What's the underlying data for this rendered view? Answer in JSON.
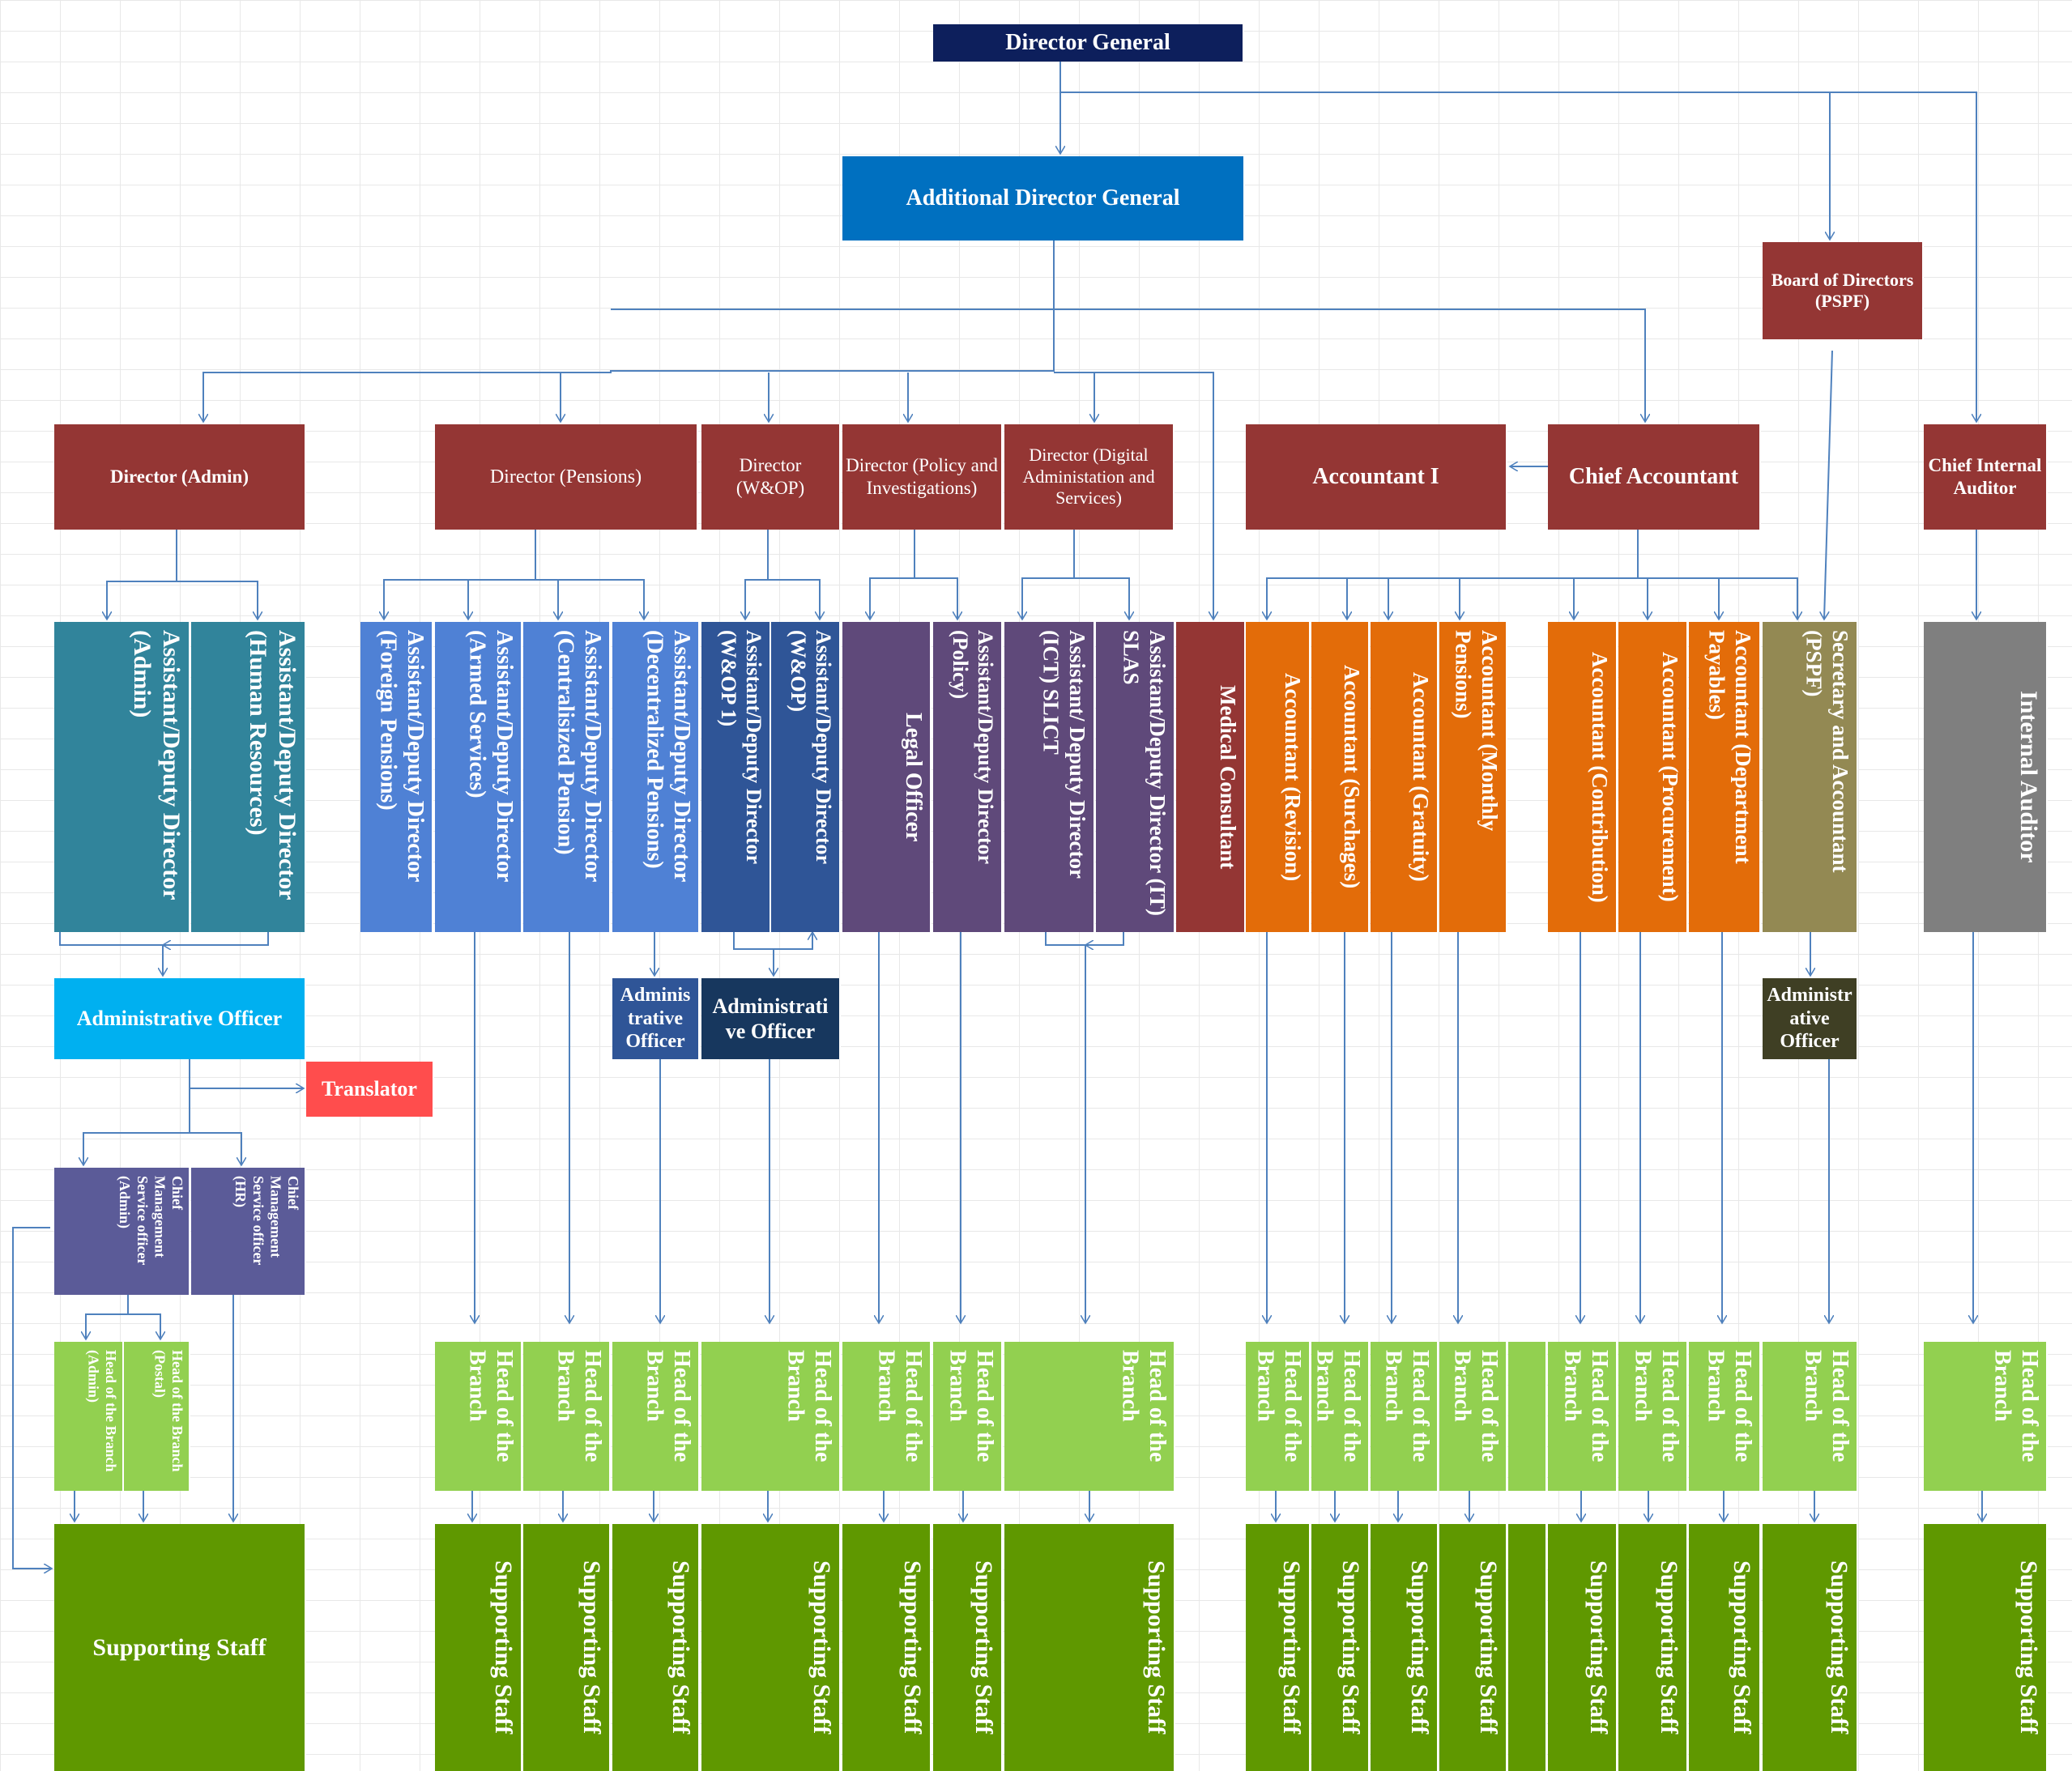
{
  "colors": {
    "navy": "#0d1f5c",
    "blue": "#0070c0",
    "red": "#943634",
    "teal": "#31849b",
    "lightblue": "#4f81d5",
    "darkblue": "#2f5597",
    "purple": "#5f497a",
    "orange": "#e36c09",
    "olive": "#938953",
    "gray": "#7f7f7f",
    "cyan": "#00b0f0",
    "coral": "#ff4d4d",
    "navy2": "#17375e",
    "darkolive": "#3f3f24",
    "slate": "#5b5b98",
    "lightgreen": "#92d050",
    "green": "#5f9800",
    "line": "#4f81bd"
  },
  "nodes": [
    {
      "id": "dg",
      "label": "Director General"
    },
    {
      "id": "adg",
      "label": "Additional Director General"
    },
    {
      "id": "bod",
      "label": "Board of Directors (PSPF)"
    },
    {
      "id": "dir_admin",
      "label": "Director (Admin)"
    },
    {
      "id": "dir_pensions",
      "label": "Director (Pensions)"
    },
    {
      "id": "dir_wop",
      "label": "Director (W&OP)"
    },
    {
      "id": "dir_policy",
      "label": "Director (Policy and Investigations)"
    },
    {
      "id": "dir_digital",
      "label": "Director (Digital Administation and Services)"
    },
    {
      "id": "acc1",
      "label": "Accountant I"
    },
    {
      "id": "chief_acc",
      "label": "Chief Accountant"
    },
    {
      "id": "cia",
      "label": "Chief Internal Auditor"
    },
    {
      "id": "add_admin",
      "label": "Assistant/Deputy Director (Admin)"
    },
    {
      "id": "add_hr",
      "label": "Assistant/Deputy Director (Human Resources)"
    },
    {
      "id": "add_foreign",
      "label": "Assistant/Deputy Director (Foreign Pensions)"
    },
    {
      "id": "add_armed",
      "label": "Assistant/Deputy Director (Armed Services)"
    },
    {
      "id": "add_central",
      "label": "Assistant/Deputy Director (Centralisized Pension)"
    },
    {
      "id": "add_decentral",
      "label": "Assistant/Deputy Director (Decentralized Pensions)"
    },
    {
      "id": "add_wop1",
      "label": "Assistant/Deputy Director (W&OP 1)"
    },
    {
      "id": "add_wop",
      "label": "Assistant/Deputy Director (W&OP)"
    },
    {
      "id": "legal",
      "label": "Legal Officer"
    },
    {
      "id": "add_policy",
      "label": "Assistant/Deputy Director (Policy)"
    },
    {
      "id": "add_ict",
      "label": "Assistant/ Deputy Director (ICT) SLICT"
    },
    {
      "id": "add_it",
      "label": "Assistant/Deputy Director (IT) SLAS"
    },
    {
      "id": "medical",
      "label": "Medical Consultant"
    },
    {
      "id": "acc_revision",
      "label": "Accountant (Revision)"
    },
    {
      "id": "acc_surcharges",
      "label": "Accountant (Surchages)"
    },
    {
      "id": "acc_gratuity",
      "label": "Accountant (Gratuity)"
    },
    {
      "id": "acc_monthly",
      "label": "Accountant (Monthly Pensions)"
    },
    {
      "id": "acc_contribution",
      "label": "Accountant (Contribution)"
    },
    {
      "id": "acc_procurement",
      "label": "Accountant (Procurement)"
    },
    {
      "id": "acc_payables",
      "label": "Accountant (Department Payables)"
    },
    {
      "id": "sec_acc",
      "label": "Secretary and Accountant (PSPF)"
    },
    {
      "id": "internal_auditor",
      "label": "Internal Auditor"
    },
    {
      "id": "ao_admin",
      "label": "Administrative Officer"
    },
    {
      "id": "translator",
      "label": "Translator"
    },
    {
      "id": "ao_pensions",
      "label": "Adminis trative Officer"
    },
    {
      "id": "ao_wop",
      "label": "Administrati ve Officer"
    },
    {
      "id": "ao_pspf",
      "label": "Administr ative Officer"
    },
    {
      "id": "cmso_admin",
      "label": "Chief Management Service officer (Admin)"
    },
    {
      "id": "cmso_hr",
      "label": "Chief Management Service officer (HR)"
    },
    {
      "id": "hob_admin",
      "label": "Head of the Branch (Admin)"
    },
    {
      "id": "hob_postal",
      "label": "Head of the Branch (Postal)"
    },
    {
      "id": "hob_1",
      "label": "Head of the Branch"
    },
    {
      "id": "hob_2",
      "label": "Head of the Branch"
    },
    {
      "id": "hob_3",
      "label": "Head of the Branch"
    },
    {
      "id": "hob_4",
      "label": "Head of the Branch"
    },
    {
      "id": "hob_5",
      "label": "Head of the Branch"
    },
    {
      "id": "hob_6",
      "label": "Head of the Branch"
    },
    {
      "id": "hob_7",
      "label": "Head of the Branch"
    },
    {
      "id": "hob_8",
      "label": "Head of the Branch"
    },
    {
      "id": "hob_9",
      "label": "Head of the Branch"
    },
    {
      "id": "hob_10",
      "label": "Head of the Branch"
    },
    {
      "id": "hob_11",
      "label": "Head of the Branch"
    },
    {
      "id": "hob_12",
      "label": "Head of the Branch"
    },
    {
      "id": "hob_13",
      "label": "Head of the Branch"
    },
    {
      "id": "hob_14",
      "label": "Head of the Branch"
    },
    {
      "id": "hob_15",
      "label": "Head of the Branch"
    },
    {
      "id": "hob_16",
      "label": "Head of the Branch"
    },
    {
      "id": "ss_admin",
      "label": "Supporting Staff"
    },
    {
      "id": "ss_1",
      "label": "Supporting Staff"
    },
    {
      "id": "ss_2",
      "label": "Supporting Staff"
    },
    {
      "id": "ss_3",
      "label": "Supporting Staff"
    },
    {
      "id": "ss_4",
      "label": "Supporting Staff"
    },
    {
      "id": "ss_5",
      "label": "Supporting Staff"
    },
    {
      "id": "ss_6",
      "label": "Supporting Staff"
    },
    {
      "id": "ss_7",
      "label": "Supporting Staff"
    },
    {
      "id": "ss_8",
      "label": "Supporting Staff"
    },
    {
      "id": "ss_9",
      "label": "Supporting Staff"
    },
    {
      "id": "ss_10",
      "label": "Supporting Staff"
    },
    {
      "id": "ss_11",
      "label": "Supporting Staff"
    },
    {
      "id": "ss_12",
      "label": "Supporting Staff"
    },
    {
      "id": "ss_13",
      "label": "Supporting Staff"
    },
    {
      "id": "ss_14",
      "label": "Supporting Staff"
    },
    {
      "id": "ss_15",
      "label": "Supporting Staff"
    },
    {
      "id": "ss_16",
      "label": "Supporting Staff"
    }
  ],
  "edges": [
    {
      "from": "dg",
      "to": "adg"
    },
    {
      "from": "dg",
      "to": "bod"
    },
    {
      "from": "dg",
      "to": "cia"
    },
    {
      "from": "adg",
      "to": "dir_admin"
    },
    {
      "from": "adg",
      "to": "dir_pensions"
    },
    {
      "from": "adg",
      "to": "dir_wop"
    },
    {
      "from": "adg",
      "to": "dir_policy"
    },
    {
      "from": "adg",
      "to": "dir_digital"
    },
    {
      "from": "adg",
      "to": "medical"
    },
    {
      "from": "adg",
      "to": "chief_acc"
    },
    {
      "from": "chief_acc",
      "to": "acc1"
    },
    {
      "from": "dir_admin",
      "to": "add_admin"
    },
    {
      "from": "dir_admin",
      "to": "add_hr"
    },
    {
      "from": "dir_pensions",
      "to": "add_foreign"
    },
    {
      "from": "dir_pensions",
      "to": "add_armed"
    },
    {
      "from": "dir_pensions",
      "to": "add_central"
    },
    {
      "from": "dir_pensions",
      "to": "add_decentral"
    },
    {
      "from": "dir_wop",
      "to": "add_wop1"
    },
    {
      "from": "dir_wop",
      "to": "add_wop"
    },
    {
      "from": "dir_policy",
      "to": "legal"
    },
    {
      "from": "dir_policy",
      "to": "add_policy"
    },
    {
      "from": "dir_digital",
      "to": "add_ict"
    },
    {
      "from": "dir_digital",
      "to": "add_it"
    },
    {
      "from": "chief_acc",
      "to": "acc_revision"
    },
    {
      "from": "chief_acc",
      "to": "acc_surcharges"
    },
    {
      "from": "chief_acc",
      "to": "acc_gratuity"
    },
    {
      "from": "chief_acc",
      "to": "acc_monthly"
    },
    {
      "from": "chief_acc",
      "to": "acc_contribution"
    },
    {
      "from": "chief_acc",
      "to": "acc_procurement"
    },
    {
      "from": "chief_acc",
      "to": "acc_payables"
    },
    {
      "from": "chief_acc",
      "to": "sec_acc"
    },
    {
      "from": "bod",
      "to": "sec_acc"
    },
    {
      "from": "cia",
      "to": "internal_auditor"
    },
    {
      "from": "add_admin",
      "to": "ao_admin"
    },
    {
      "from": "add_hr",
      "to": "ao_admin"
    },
    {
      "from": "ao_admin",
      "to": "translator"
    },
    {
      "from": "ao_admin",
      "to": "cmso_admin"
    },
    {
      "from": "ao_admin",
      "to": "cmso_hr"
    },
    {
      "from": "add_decentral",
      "to": "ao_pensions"
    },
    {
      "from": "add_wop1",
      "to": "ao_wop"
    },
    {
      "from": "add_wop",
      "to": "ao_wop"
    },
    {
      "from": "sec_acc",
      "to": "ao_pspf"
    },
    {
      "from": "cmso_admin",
      "to": "hob_admin"
    },
    {
      "from": "cmso_admin",
      "to": "hob_postal"
    },
    {
      "from": "cmso_admin",
      "to": "ss_admin"
    },
    {
      "from": "cmso_hr",
      "to": "ss_admin"
    },
    {
      "from": "hob_admin",
      "to": "ss_admin"
    },
    {
      "from": "hob_postal",
      "to": "ss_admin"
    },
    {
      "from": "add_armed",
      "to": "hob_1"
    },
    {
      "from": "add_central",
      "to": "hob_2"
    },
    {
      "from": "ao_pensions",
      "to": "hob_3"
    },
    {
      "from": "ao_wop",
      "to": "hob_4"
    },
    {
      "from": "legal",
      "to": "hob_5"
    },
    {
      "from": "add_policy",
      "to": "hob_6"
    },
    {
      "from": "add_ict",
      "to": "hob_7"
    },
    {
      "from": "add_it",
      "to": "hob_7"
    },
    {
      "from": "acc_revision",
      "to": "hob_8"
    },
    {
      "from": "acc_surcharges",
      "to": "hob_9"
    },
    {
      "from": "acc_gratuity",
      "to": "hob_10"
    },
    {
      "from": "acc_monthly",
      "to": "hob_11"
    },
    {
      "from": "acc_contribution",
      "to": "hob_12"
    },
    {
      "from": "acc_procurement",
      "to": "hob_13"
    },
    {
      "from": "acc_payables",
      "to": "hob_14"
    },
    {
      "from": "ao_pspf",
      "to": "hob_15"
    },
    {
      "from": "internal_auditor",
      "to": "hob_16"
    },
    {
      "from": "hob_1",
      "to": "ss_1"
    },
    {
      "from": "hob_2",
      "to": "ss_2"
    },
    {
      "from": "hob_3",
      "to": "ss_3"
    },
    {
      "from": "hob_4",
      "to": "ss_4"
    },
    {
      "from": "hob_5",
      "to": "ss_5"
    },
    {
      "from": "hob_6",
      "to": "ss_6"
    },
    {
      "from": "hob_7",
      "to": "ss_7"
    },
    {
      "from": "hob_8",
      "to": "ss_8"
    },
    {
      "from": "hob_9",
      "to": "ss_9"
    },
    {
      "from": "hob_10",
      "to": "ss_10"
    },
    {
      "from": "hob_11",
      "to": "ss_11"
    },
    {
      "from": "hob_12",
      "to": "ss_12"
    },
    {
      "from": "hob_13",
      "to": "ss_13"
    },
    {
      "from": "hob_14",
      "to": "ss_14"
    },
    {
      "from": "hob_15",
      "to": "ss_15"
    },
    {
      "from": "hob_16",
      "to": "ss_16"
    }
  ]
}
